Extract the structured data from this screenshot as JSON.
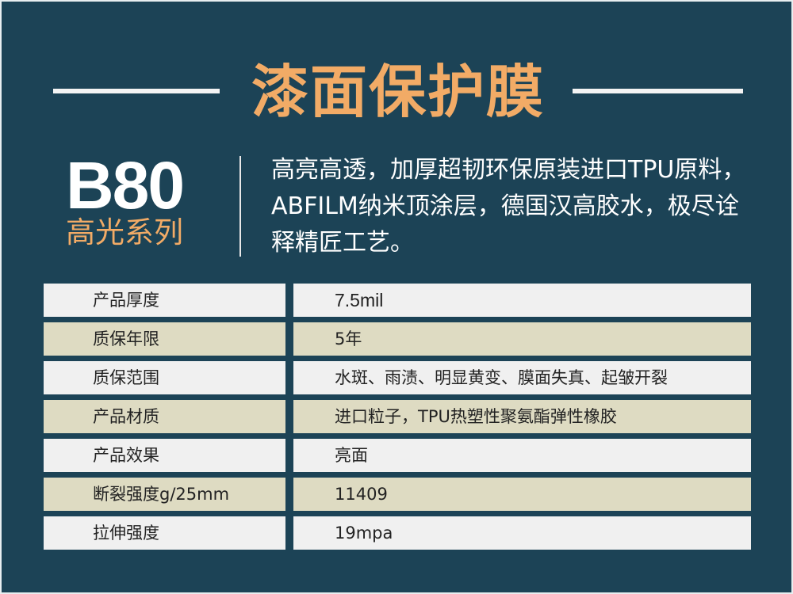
{
  "title": "漆面保护膜",
  "model": "B80",
  "series": "高光系列",
  "description": "高亮高透，加厚超韧环保原装进口TPU原料，ABFILM纳米顶涂层，德国汉高胶水，极尽诠释精匠工艺。",
  "colors": {
    "background": "#1c4356",
    "accent": "#f2ab66",
    "row_light": "#f0f0f0",
    "row_beige": "#dedbc2"
  },
  "specs": [
    {
      "label": "产品厚度",
      "value": "7.5mil"
    },
    {
      "label": "质保年限",
      "value": "5年"
    },
    {
      "label": "质保范围",
      "value": "水斑、雨渍、明显黄变、膜面失真、起皱开裂"
    },
    {
      "label": "产品材质",
      "value": "进口粒子，TPU热塑性聚氨酯弹性橡胶"
    },
    {
      "label": "产品效果",
      "value": "亮面"
    },
    {
      "label": "断裂强度g/25mm",
      "value": "11409"
    },
    {
      "label": "拉伸强度",
      "value": "19mpa"
    }
  ]
}
